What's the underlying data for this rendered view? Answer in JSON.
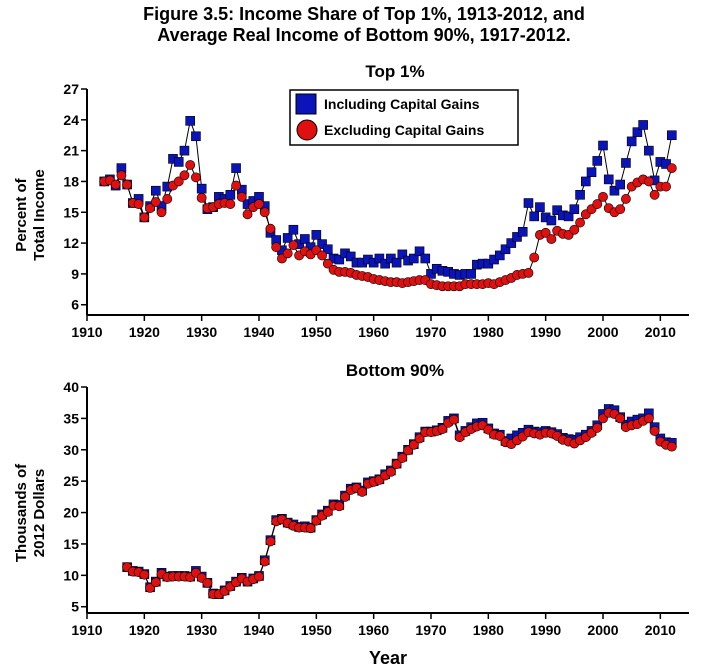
{
  "title_line1": "Figure 3.5: Income Share of Top 1%, 1913-2012, and",
  "title_line2": "Average Real Income of Bottom 90%, 1917-2012.",
  "x_axis_title": "Year",
  "colors": {
    "including": "#0b14b8",
    "excluding": "#e01010",
    "line": "#000000"
  },
  "chart_data": [
    {
      "type": "line",
      "title": "Top 1%",
      "ylabel_line1": "Percent of",
      "ylabel_line2": "Total Income",
      "xlim": [
        1910,
        2015
      ],
      "ylim": [
        5,
        27
      ],
      "yticks": [
        6,
        9,
        12,
        15,
        18,
        21,
        24,
        27
      ],
      "xticks": [
        1910,
        1920,
        1930,
        1940,
        1950,
        1960,
        1970,
        1980,
        1990,
        2000,
        2010
      ],
      "legend_position": "top-center",
      "series": [
        {
          "name": "Including Capital Gains",
          "marker": "square",
          "x": [
            1913,
            1914,
            1915,
            1916,
            1917,
            1918,
            1919,
            1920,
            1921,
            1922,
            1923,
            1924,
            1925,
            1926,
            1927,
            1928,
            1929,
            1930,
            1931,
            1932,
            1933,
            1934,
            1935,
            1936,
            1937,
            1938,
            1939,
            1940,
            1941,
            1942,
            1943,
            1944,
            1945,
            1946,
            1947,
            1948,
            1949,
            1950,
            1951,
            1952,
            1953,
            1954,
            1955,
            1956,
            1957,
            1958,
            1959,
            1960,
            1961,
            1962,
            1963,
            1964,
            1965,
            1966,
            1967,
            1968,
            1969,
            1970,
            1971,
            1972,
            1973,
            1974,
            1975,
            1976,
            1977,
            1978,
            1979,
            1980,
            1981,
            1982,
            1983,
            1984,
            1985,
            1986,
            1987,
            1988,
            1989,
            1990,
            1991,
            1992,
            1993,
            1994,
            1995,
            1996,
            1997,
            1998,
            1999,
            2000,
            2001,
            2002,
            2003,
            2004,
            2005,
            2006,
            2007,
            2008,
            2009,
            2010,
            2011,
            2012
          ],
          "y": [
            18.0,
            18.2,
            17.6,
            19.3,
            17.7,
            15.9,
            16.3,
            14.5,
            15.6,
            17.1,
            15.6,
            17.5,
            20.2,
            19.9,
            21.0,
            23.9,
            22.4,
            17.3,
            15.3,
            15.5,
            16.5,
            16.3,
            16.7,
            19.3,
            17.2,
            15.8,
            16.1,
            16.5,
            15.6,
            13.0,
            12.3,
            11.3,
            12.5,
            13.3,
            11.9,
            12.4,
            11.6,
            12.8,
            11.9,
            11.4,
            10.5,
            10.4,
            11.0,
            10.7,
            10.1,
            10.1,
            10.4,
            10.1,
            10.5,
            10.0,
            10.5,
            10.1,
            10.9,
            10.3,
            10.5,
            11.2,
            10.5,
            9.0,
            9.5,
            9.3,
            9.2,
            9.0,
            8.9,
            9.0,
            9.0,
            9.9,
            10.0,
            10.0,
            10.4,
            10.8,
            11.4,
            12.0,
            12.6,
            13.1,
            15.9,
            14.6,
            15.5,
            14.5,
            14.2,
            15.2,
            14.7,
            14.6,
            15.3,
            16.7,
            18.0,
            18.9,
            20.0,
            21.5,
            18.2,
            17.1,
            17.7,
            19.8,
            21.9,
            22.8,
            23.5,
            21.0,
            18.1,
            19.9,
            19.7,
            22.5
          ]
        },
        {
          "name": "Excluding Capital Gains",
          "marker": "circle",
          "x": [
            1913,
            1914,
            1915,
            1916,
            1917,
            1918,
            1919,
            1920,
            1921,
            1922,
            1923,
            1924,
            1925,
            1926,
            1927,
            1928,
            1929,
            1930,
            1931,
            1932,
            1933,
            1934,
            1935,
            1936,
            1937,
            1938,
            1939,
            1940,
            1941,
            1942,
            1943,
            1944,
            1945,
            1946,
            1947,
            1948,
            1949,
            1950,
            1951,
            1952,
            1953,
            1954,
            1955,
            1956,
            1957,
            1958,
            1959,
            1960,
            1961,
            1962,
            1963,
            1964,
            1965,
            1966,
            1967,
            1968,
            1969,
            1970,
            1971,
            1972,
            1973,
            1974,
            1975,
            1976,
            1977,
            1978,
            1979,
            1980,
            1981,
            1982,
            1983,
            1984,
            1985,
            1986,
            1987,
            1988,
            1989,
            1990,
            1991,
            1992,
            1993,
            1994,
            1995,
            1996,
            1997,
            1998,
            1999,
            2000,
            2001,
            2002,
            2003,
            2004,
            2005,
            2006,
            2007,
            2008,
            2009,
            2010,
            2011,
            2012
          ],
          "y": [
            18.0,
            18.1,
            17.7,
            18.6,
            17.7,
            15.9,
            15.8,
            14.5,
            15.4,
            16.0,
            15.0,
            16.3,
            17.6,
            18.0,
            18.6,
            19.6,
            18.4,
            16.4,
            15.4,
            15.5,
            15.8,
            15.9,
            15.8,
            17.6,
            16.5,
            14.8,
            15.5,
            15.8,
            15.0,
            13.4,
            11.6,
            10.5,
            11.0,
            11.8,
            10.8,
            11.2,
            10.9,
            11.3,
            10.8,
            10.0,
            9.4,
            9.2,
            9.2,
            9.1,
            8.9,
            8.8,
            8.7,
            8.5,
            8.4,
            8.3,
            8.2,
            8.2,
            8.1,
            8.2,
            8.3,
            8.4,
            8.4,
            8.0,
            7.9,
            7.8,
            7.8,
            7.8,
            7.8,
            8.0,
            8.0,
            8.0,
            8.0,
            8.1,
            8.0,
            8.2,
            8.4,
            8.6,
            8.9,
            9.0,
            9.1,
            10.6,
            12.8,
            13.0,
            12.4,
            13.2,
            12.9,
            12.8,
            13.3,
            14.0,
            14.8,
            15.3,
            15.8,
            16.5,
            15.4,
            15.0,
            15.3,
            16.3,
            17.5,
            17.9,
            18.2,
            18.0,
            16.7,
            17.5,
            17.5,
            19.3
          ]
        }
      ]
    },
    {
      "type": "line",
      "title": "Bottom 90%",
      "ylabel_line1": "Thousands of",
      "ylabel_line2": "2012 Dollars",
      "xlim": [
        1910,
        2015
      ],
      "ylim": [
        4,
        40
      ],
      "yticks": [
        5,
        10,
        15,
        20,
        25,
        30,
        35,
        40
      ],
      "xticks": [
        1910,
        1920,
        1930,
        1940,
        1950,
        1960,
        1970,
        1980,
        1990,
        2000,
        2010
      ],
      "series": [
        {
          "name": "Including Capital Gains",
          "marker": "square",
          "x": [
            1917,
            1918,
            1919,
            1920,
            1921,
            1922,
            1923,
            1924,
            1925,
            1926,
            1927,
            1928,
            1929,
            1930,
            1931,
            1932,
            1933,
            1934,
            1935,
            1936,
            1937,
            1938,
            1939,
            1940,
            1941,
            1942,
            1943,
            1944,
            1945,
            1946,
            1947,
            1948,
            1949,
            1950,
            1951,
            1952,
            1953,
            1954,
            1955,
            1956,
            1957,
            1958,
            1959,
            1960,
            1961,
            1962,
            1963,
            1964,
            1965,
            1966,
            1967,
            1968,
            1969,
            1970,
            1971,
            1972,
            1973,
            1974,
            1975,
            1976,
            1977,
            1978,
            1979,
            1980,
            1981,
            1982,
            1983,
            1984,
            1985,
            1986,
            1987,
            1988,
            1989,
            1990,
            1991,
            1992,
            1993,
            1994,
            1995,
            1996,
            1997,
            1998,
            1999,
            2000,
            2001,
            2002,
            2003,
            2004,
            2005,
            2006,
            2007,
            2008,
            2009,
            2010,
            2011,
            2012
          ],
          "y": [
            11.3,
            10.7,
            10.6,
            10.2,
            8.1,
            9.0,
            10.4,
            9.8,
            9.9,
            9.9,
            9.9,
            9.8,
            10.7,
            9.8,
            8.8,
            7.1,
            7.0,
            7.6,
            8.3,
            9.0,
            9.6,
            9.0,
            9.5,
            9.9,
            12.4,
            15.6,
            18.8,
            19.0,
            18.4,
            18.1,
            17.7,
            17.8,
            17.6,
            18.8,
            19.7,
            20.3,
            21.3,
            21.2,
            22.7,
            23.8,
            24.0,
            23.5,
            24.8,
            25.0,
            25.3,
            26.1,
            26.7,
            27.8,
            28.9,
            30.0,
            30.9,
            32.0,
            32.9,
            32.9,
            33.1,
            33.5,
            34.6,
            35.0,
            32.3,
            33.0,
            33.6,
            34.2,
            34.3,
            33.4,
            32.6,
            32.4,
            31.4,
            31.8,
            32.3,
            32.7,
            33.2,
            32.9,
            32.8,
            33.0,
            32.8,
            32.5,
            31.9,
            31.7,
            31.6,
            32.0,
            32.4,
            33.0,
            33.9,
            35.7,
            36.5,
            36.3,
            35.2,
            34.0,
            34.5,
            34.8,
            35.0,
            35.8,
            33.6,
            31.8,
            31.2,
            31.1
          ]
        },
        {
          "name": "Excluding Capital Gains",
          "marker": "circle",
          "x": [
            1917,
            1918,
            1919,
            1920,
            1921,
            1922,
            1923,
            1924,
            1925,
            1926,
            1927,
            1928,
            1929,
            1930,
            1931,
            1932,
            1933,
            1934,
            1935,
            1936,
            1937,
            1938,
            1939,
            1940,
            1941,
            1942,
            1943,
            1944,
            1945,
            1946,
            1947,
            1948,
            1949,
            1950,
            1951,
            1952,
            1953,
            1954,
            1955,
            1956,
            1957,
            1958,
            1959,
            1960,
            1961,
            1962,
            1963,
            1964,
            1965,
            1966,
            1967,
            1968,
            1969,
            1970,
            1971,
            1972,
            1973,
            1974,
            1975,
            1976,
            1977,
            1978,
            1979,
            1980,
            1981,
            1982,
            1983,
            1984,
            1985,
            1986,
            1987,
            1988,
            1989,
            1990,
            1991,
            1992,
            1993,
            1994,
            1995,
            1996,
            1997,
            1998,
            1999,
            2000,
            2001,
            2002,
            2003,
            2004,
            2005,
            2006,
            2007,
            2008,
            2009,
            2010,
            2011,
            2012
          ],
          "y": [
            11.3,
            10.6,
            10.5,
            10.1,
            8.0,
            8.9,
            10.2,
            9.7,
            9.8,
            9.8,
            9.8,
            9.7,
            10.4,
            9.6,
            8.8,
            7.0,
            7.0,
            7.5,
            8.2,
            8.9,
            9.5,
            9.0,
            9.4,
            9.8,
            12.2,
            15.4,
            18.6,
            18.9,
            18.3,
            17.9,
            17.6,
            17.6,
            17.5,
            18.7,
            19.5,
            20.1,
            21.1,
            21.0,
            22.5,
            23.6,
            23.9,
            23.3,
            24.6,
            24.9,
            25.2,
            25.9,
            26.5,
            27.7,
            28.7,
            29.9,
            30.8,
            31.8,
            32.8,
            32.8,
            33.0,
            33.3,
            34.3,
            34.8,
            32.0,
            32.8,
            33.3,
            33.7,
            33.9,
            33.2,
            32.4,
            32.2,
            31.2,
            30.9,
            31.5,
            32.1,
            32.8,
            32.6,
            32.4,
            32.7,
            32.6,
            32.2,
            31.6,
            31.3,
            31.0,
            31.5,
            32.0,
            32.7,
            33.5,
            35.0,
            35.9,
            35.7,
            35.0,
            33.6,
            33.9,
            34.1,
            34.6,
            35.0,
            33.0,
            31.3,
            30.8,
            30.5
          ]
        }
      ]
    }
  ]
}
